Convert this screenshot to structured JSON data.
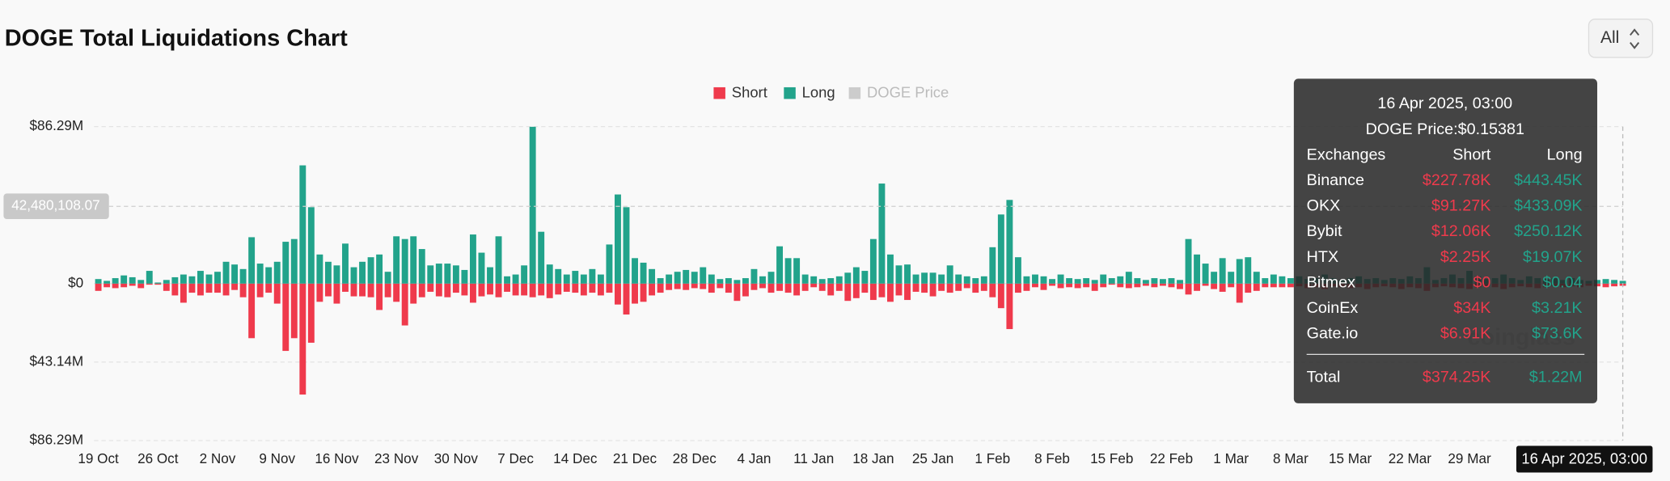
{
  "chart_data": {
    "type": "bar",
    "title": "DOGE Total Liquidations Chart",
    "range_selector": "All",
    "watermark": "coinglass",
    "categories": [
      "19 Oct",
      null,
      null,
      null,
      null,
      null,
      null,
      "26 Oct",
      null,
      null,
      null,
      null,
      null,
      null,
      "2 Nov",
      null,
      null,
      null,
      null,
      null,
      null,
      "9 Nov",
      null,
      null,
      null,
      null,
      null,
      null,
      "16 Nov",
      null,
      null,
      null,
      null,
      null,
      null,
      "23 Nov",
      null,
      null,
      null,
      null,
      null,
      null,
      "30 Nov",
      null,
      null,
      null,
      null,
      null,
      null,
      "7 Dec",
      null,
      null,
      null,
      null,
      null,
      null,
      "14 Dec",
      null,
      null,
      null,
      null,
      null,
      null,
      "21 Dec",
      null,
      null,
      null,
      null,
      null,
      null,
      "28 Dec",
      null,
      null,
      null,
      null,
      null,
      null,
      "4 Jan",
      null,
      null,
      null,
      null,
      null,
      null,
      "11 Jan",
      null,
      null,
      null,
      null,
      null,
      null,
      "18 Jan",
      null,
      null,
      null,
      null,
      null,
      null,
      "25 Jan",
      null,
      null,
      null,
      null,
      null,
      null,
      "1 Feb",
      null,
      null,
      null,
      null,
      null,
      null,
      "8 Feb",
      null,
      null,
      null,
      null,
      null,
      null,
      "15 Feb",
      null,
      null,
      null,
      null,
      null,
      null,
      "22 Feb",
      null,
      null,
      null,
      null,
      null,
      null,
      "1 Mar",
      null,
      null,
      null,
      null,
      null,
      null,
      "8 Mar",
      null,
      null,
      null,
      null,
      null,
      null,
      "15 Mar",
      null,
      null,
      null,
      null,
      null,
      null,
      "22 Mar",
      null,
      null,
      null,
      null,
      null,
      null,
      "29 Mar",
      null,
      null,
      null,
      null,
      null,
      null,
      null,
      null,
      null,
      null,
      null,
      null,
      null,
      null,
      null,
      null,
      null,
      null
    ],
    "series": [
      {
        "name": "Short",
        "color": "#ef3a4c",
        "values": [
          -4,
          -2,
          -2.5,
          -2,
          -1.2,
          -2.5,
          -0.6,
          -0.6,
          -4,
          -6.5,
          -10.5,
          -5,
          -6.5,
          -5,
          -5,
          -6.5,
          -3.5,
          -7.5,
          -30,
          -7.5,
          -5,
          -11,
          -37,
          -30,
          -61,
          -32.5,
          -10,
          -7,
          -11,
          -4.5,
          -7,
          -7,
          -7.5,
          -14.5,
          -7.5,
          -10,
          -23,
          -11,
          -7.5,
          -4.5,
          -7,
          -7.5,
          -5,
          -6.5,
          -10.5,
          -7,
          -6,
          -7.5,
          -4.5,
          -6.5,
          -6.5,
          -7.5,
          -6.5,
          -8,
          -6,
          -4.5,
          -5,
          -6.5,
          -5,
          -6.5,
          -5,
          -11.5,
          -17,
          -11,
          -10,
          -6.5,
          -5,
          -3.5,
          -3,
          -3.5,
          -2.5,
          -3,
          -5,
          -2.5,
          -5,
          -9.5,
          -7,
          -3.5,
          -2.5,
          -5,
          -4,
          -5,
          -6.5,
          -4,
          -2,
          -4,
          -6.5,
          -4,
          -9.5,
          -8,
          -5,
          -9,
          -7.5,
          -10,
          -6.5,
          -9,
          -4.5,
          -5,
          -7,
          -4,
          -5,
          -4,
          -2.5,
          -5,
          -4,
          -7.5,
          -13.5,
          -25,
          -5,
          -4,
          -2,
          -3.5,
          -1.2,
          -2.5,
          -2,
          -2.5,
          -2,
          -4,
          -2,
          -0.6,
          -2,
          -2.5,
          -2,
          -1.2,
          -2,
          -1.2,
          -2,
          -3,
          -6,
          -4,
          -1.2,
          -3,
          -4.5,
          -2,
          -10.5,
          -5,
          -4,
          -2,
          -2,
          -2,
          -2,
          -1.5,
          -2.5,
          -2,
          -3,
          -1.5,
          -2,
          -2.5,
          -2,
          -3,
          -2,
          -1.5,
          -2,
          -3,
          -2,
          -2.5,
          -4,
          -2,
          -1.5,
          -2,
          -2.5,
          -3,
          -2,
          -1.5,
          -2,
          -3,
          -2,
          -1.5,
          -2,
          -2.5,
          -2,
          -1.5,
          -2,
          -1.5,
          -2,
          -1.2,
          -1.5,
          -2,
          -1.5,
          -1.2
        ]
      },
      {
        "name": "Long",
        "color": "#22a38b",
        "values": [
          2.5,
          1.5,
          3,
          4.5,
          3.5,
          2,
          7,
          0.6,
          2,
          3.5,
          5,
          4,
          7,
          5,
          6.5,
          12,
          10.5,
          8,
          25.5,
          11,
          9,
          12,
          23,
          24.5,
          65,
          42,
          16,
          12,
          10,
          22,
          9,
          12,
          14.5,
          16,
          6.5,
          26,
          24.5,
          26,
          19,
          10,
          11,
          11,
          10,
          7.5,
          27,
          17,
          9,
          26,
          4,
          5,
          10,
          86.2,
          28.5,
          10.5,
          8,
          5,
          7,
          5,
          8,
          5,
          21.5,
          49,
          42,
          14,
          11.5,
          8,
          3,
          5,
          6.5,
          7.5,
          6.5,
          9,
          5,
          2.5,
          3,
          2,
          3,
          8,
          4,
          6.5,
          20.5,
          14,
          14,
          5,
          4,
          2.5,
          3,
          4,
          6,
          9,
          7,
          24.5,
          55,
          16,
          10,
          10.5,
          5,
          6,
          6,
          5,
          10,
          5,
          4,
          3,
          4,
          20,
          38,
          46,
          14.5,
          4,
          5,
          4,
          2.5,
          5,
          3,
          2.5,
          3,
          2,
          5,
          3,
          4,
          6.5,
          3,
          2,
          3,
          2.5,
          3,
          2,
          24.5,
          16,
          11,
          6.5,
          14,
          6.5,
          13.5,
          14.5,
          6.5,
          3,
          5,
          4,
          3,
          4,
          2.5,
          3,
          5,
          3,
          2,
          3,
          4,
          2.5,
          3,
          2,
          3,
          2.5,
          4,
          3,
          9,
          2,
          3,
          5,
          3,
          7,
          4,
          2.5,
          3,
          5,
          3,
          2,
          4,
          3,
          2.5,
          3,
          2,
          3,
          2,
          1.5,
          2,
          2.5,
          2,
          1.5
        ]
      }
    ],
    "hidden_series": {
      "name": "DOGE Price",
      "color": "#cccccc"
    },
    "ylim": [
      -86.29,
      86.29
    ],
    "yticks": [
      {
        "value": 86.29,
        "label": "$86.29M"
      },
      {
        "value": 0,
        "label": "$0"
      },
      {
        "value": -43.14,
        "label": "$43.14M"
      },
      {
        "value": -86.29,
        "label": "$86.29M"
      }
    ],
    "grid": true,
    "legend": "top",
    "crosshair": {
      "y": {
        "value": 42.48010807,
        "label": "42,480,108.07"
      },
      "x_label": "16 Apr 2025, 03:00"
    },
    "tooltip": {
      "title": "16 Apr 2025, 03:00",
      "price": "DOGE Price:$0.15381",
      "columns": [
        "Exchanges",
        "Short",
        "Long"
      ],
      "rows": [
        [
          "Binance",
          "$227.78K",
          "$443.45K"
        ],
        [
          "OKX",
          "$91.27K",
          "$433.09K"
        ],
        [
          "Bybit",
          "$12.06K",
          "$250.12K"
        ],
        [
          "HTX",
          "$2.25K",
          "$19.07K"
        ],
        [
          "Bitmex",
          "$0",
          "$0.04"
        ],
        [
          "CoinEx",
          "$34K",
          "$3.21K"
        ],
        [
          "Gate.io",
          "$6.91K",
          "$73.6K"
        ]
      ],
      "total": [
        "Total",
        "$374.25K",
        "$1.22M"
      ]
    }
  }
}
